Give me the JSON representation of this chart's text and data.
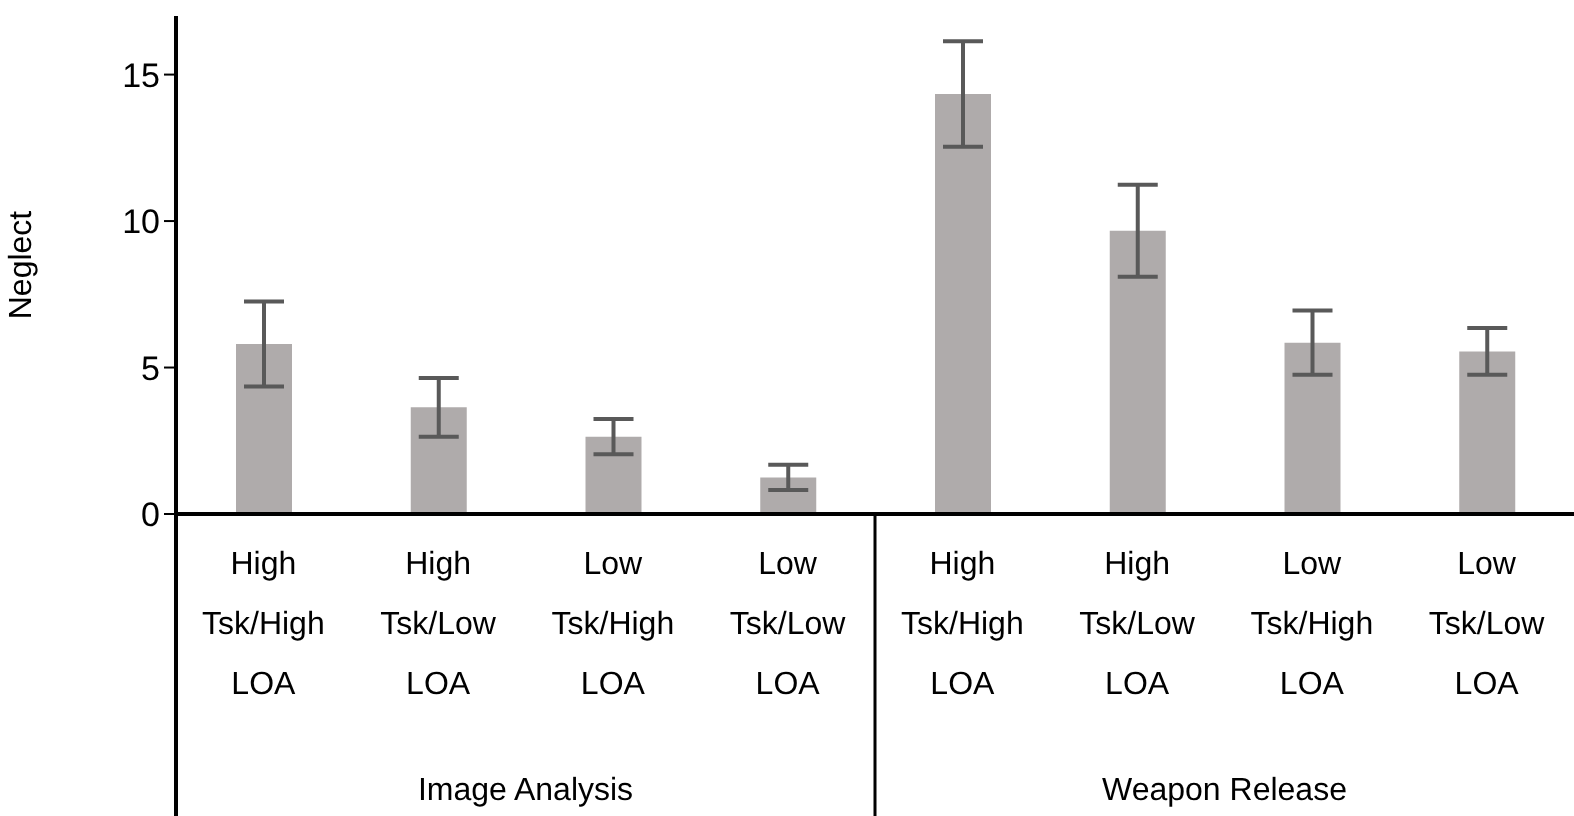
{
  "chart_data": {
    "type": "bar",
    "ylabel": "Neglect",
    "categories": [
      "High Tsk/High LOA",
      "High Tsk/Low LOA",
      "Low Tsk/High LOA",
      "Low Tsk/Low LOA",
      "High Tsk/High LOA",
      "High Tsk/Low LOA",
      "Low Tsk/High LOA",
      "Low Tsk/Low LOA"
    ],
    "values": [
      5.8,
      3.64,
      2.64,
      1.25,
      14.34,
      9.67,
      5.85,
      5.55
    ],
    "errors": [
      1.45,
      1.0,
      0.6,
      0.43,
      1.8,
      1.57,
      1.1,
      0.8
    ],
    "color": "#afabab",
    "ylim": [
      0,
      17
    ],
    "yticks": [
      0,
      5,
      10,
      15
    ],
    "annotations": [
      "Image Analysis",
      "Weapon Release"
    ]
  }
}
